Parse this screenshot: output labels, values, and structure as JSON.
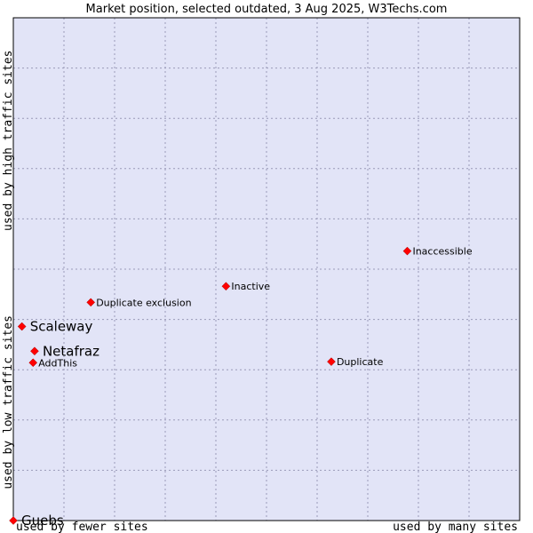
{
  "chart_data": {
    "type": "scatter",
    "title": "Market position, selected outdated, 3 Aug 2025, W3Techs.com",
    "x_axis": {
      "low_label": "used by fewer sites",
      "high_label": "used by many sites",
      "range": [
        0,
        100
      ]
    },
    "y_axis": {
      "low_label": "used by low traffic sites",
      "high_label": "used by high traffic sites",
      "range": [
        0,
        100
      ]
    },
    "grid": true,
    "colors": {
      "plot_background": "#e2e4f7",
      "marker": "#ff0000",
      "grid": "#9a9ab8"
    },
    "points": [
      {
        "label": "Inaccessible",
        "x": 77.8,
        "y": 53.6,
        "size": "small"
      },
      {
        "label": "Inactive",
        "x": 42.0,
        "y": 46.6,
        "size": "small"
      },
      {
        "label": "Duplicate exclusion",
        "x": 15.3,
        "y": 43.4,
        "size": "small"
      },
      {
        "label": "Scaleway",
        "x": 1.7,
        "y": 38.6,
        "size": "large"
      },
      {
        "label": "Netafraz",
        "x": 4.2,
        "y": 33.7,
        "size": "large"
      },
      {
        "label": "AddThis",
        "x": 3.9,
        "y": 31.4,
        "size": "small"
      },
      {
        "label": "Duplicate",
        "x": 62.8,
        "y": 31.6,
        "size": "small"
      },
      {
        "label": "Guebs",
        "x": 0.0,
        "y": 0.0,
        "size": "large"
      }
    ]
  }
}
